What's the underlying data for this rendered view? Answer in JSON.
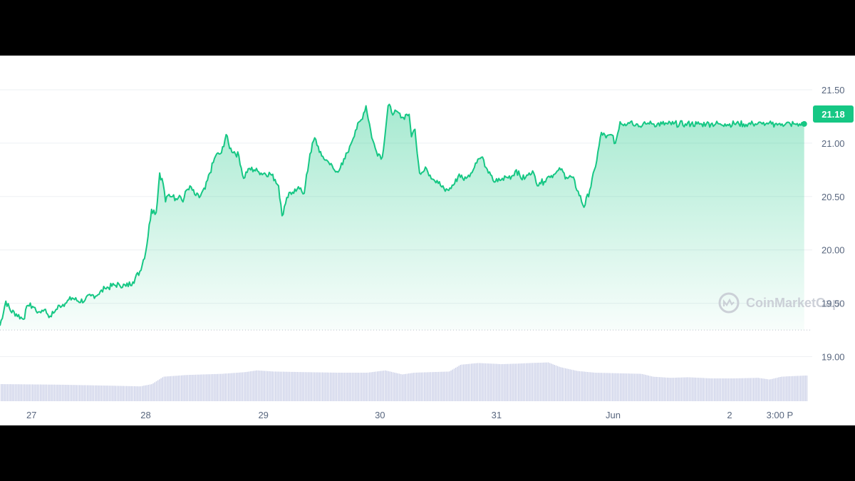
{
  "colors": {
    "line": "#16c784",
    "area_top": "#16c784",
    "volume": "#c8cde6",
    "baseline_dots": "#b9bec9",
    "axis_text": "#58667e",
    "watermark": "#c8ccd4",
    "price_badge_bg": "#16c784",
    "price_badge_text": "#ffffff"
  },
  "watermark": {
    "text": "CoinMarketCap",
    "icon": "coinmarketcap-logo-icon"
  },
  "chart_data": {
    "type": "line",
    "title": "",
    "xlabel": "",
    "ylabel": "",
    "current_price_label": "21.18",
    "current_price": 21.18,
    "ylim": [
      18.85,
      21.62
    ],
    "y_ticks": [
      "21.50",
      "21.00",
      "20.50",
      "20.00",
      "19.50",
      "19.00"
    ],
    "y_tick_values": [
      21.5,
      21.0,
      20.5,
      20.0,
      19.5,
      19.0
    ],
    "x_ticks": [
      "27",
      "28",
      "29",
      "30",
      "31",
      "Jun",
      "2",
      "3:00 P"
    ],
    "x_tick_values": [
      0.27,
      1.25,
      2.26,
      3.26,
      4.26,
      5.26,
      6.26,
      6.69
    ],
    "x_unit_note": "days since May 27 00:00",
    "xlim": [
      0.0,
      6.92
    ],
    "baseline": 19.25,
    "grid": true,
    "legend": "none",
    "series": [
      {
        "x": [
          0.0,
          0.05,
          0.09,
          0.14,
          0.2,
          0.24,
          0.28,
          0.33,
          0.38,
          0.43,
          0.47,
          0.51,
          0.56,
          0.62,
          0.67,
          0.73,
          0.78,
          0.84,
          0.9,
          0.96,
          1.02,
          1.08,
          1.14,
          1.2,
          1.25,
          1.3,
          1.34,
          1.37,
          1.4,
          1.42,
          1.45,
          1.48,
          1.51,
          1.54,
          1.57,
          1.6,
          1.63,
          1.67,
          1.71,
          1.76,
          1.8,
          1.85,
          1.9,
          1.94,
          1.97,
          2.01,
          2.05,
          2.09,
          2.13,
          2.18,
          2.22,
          2.24,
          2.27,
          2.32,
          2.36,
          2.39,
          2.42,
          2.46,
          2.49,
          2.52,
          2.55,
          2.58,
          2.61,
          2.66,
          2.7,
          2.76,
          2.82,
          2.88,
          2.94,
          3.0,
          3.05,
          3.1,
          3.14,
          3.17,
          3.19,
          3.23,
          3.28,
          3.33,
          3.38,
          3.43,
          3.46,
          3.49,
          3.51,
          3.53,
          3.56,
          3.6,
          3.63,
          3.66,
          3.69,
          3.72,
          3.75,
          3.79,
          3.82,
          3.86,
          3.9,
          3.94,
          3.97,
          4.0,
          4.02,
          4.06,
          4.1,
          4.14,
          4.16,
          4.19,
          4.23,
          4.27,
          4.31,
          4.35,
          4.39,
          4.43,
          4.47,
          4.51,
          4.54,
          4.57,
          4.6,
          4.63,
          4.67,
          4.71,
          4.76,
          4.81,
          4.86,
          4.91,
          4.96,
          5.01,
          5.06,
          5.11,
          5.16,
          5.2,
          5.24,
          5.28,
          5.32,
          5.36,
          5.41,
          5.46,
          5.5,
          5.54,
          5.57,
          5.6,
          5.64,
          5.68,
          5.73,
          5.78,
          5.83,
          5.88,
          5.93,
          5.98,
          6.02,
          6.06,
          6.1,
          6.14,
          6.18,
          6.22,
          6.26,
          6.3,
          6.34,
          6.38,
          6.42,
          6.46,
          6.5,
          6.54,
          6.57,
          6.59,
          6.62,
          6.65,
          6.68,
          6.71,
          6.74,
          6.78,
          6.82,
          6.86,
          6.9
        ],
        "values": [
          19.29,
          19.52,
          19.43,
          19.4,
          19.35,
          19.48,
          19.47,
          19.42,
          19.44,
          19.38,
          19.42,
          19.48,
          19.5,
          19.55,
          19.52,
          19.53,
          19.57,
          19.58,
          19.64,
          19.66,
          19.68,
          19.66,
          19.7,
          19.8,
          19.98,
          20.38,
          20.35,
          20.72,
          20.62,
          20.45,
          20.52,
          20.5,
          20.48,
          20.51,
          20.45,
          20.56,
          20.6,
          20.52,
          20.49,
          20.57,
          20.72,
          20.88,
          20.91,
          21.08,
          20.95,
          20.92,
          20.88,
          20.67,
          20.76,
          20.75,
          20.73,
          20.72,
          20.72,
          20.71,
          20.66,
          20.6,
          20.32,
          20.49,
          20.54,
          20.53,
          20.57,
          20.58,
          20.53,
          20.9,
          21.05,
          20.88,
          20.82,
          20.73,
          20.8,
          20.97,
          21.12,
          21.22,
          21.35,
          21.18,
          21.05,
          20.92,
          20.87,
          21.35,
          21.28,
          21.28,
          21.24,
          21.27,
          21.27,
          21.06,
          21.13,
          20.72,
          20.73,
          20.76,
          20.7,
          20.66,
          20.65,
          20.59,
          20.55,
          20.58,
          20.62,
          20.71,
          20.67,
          20.67,
          20.7,
          20.75,
          20.85,
          20.87,
          20.78,
          20.72,
          20.65,
          20.64,
          20.67,
          20.68,
          20.69,
          20.75,
          20.67,
          20.68,
          20.72,
          20.74,
          20.63,
          20.63,
          20.64,
          20.69,
          20.71,
          20.75,
          20.68,
          20.68,
          20.55,
          20.4,
          20.56,
          20.78,
          21.1,
          21.05,
          21.08,
          21.0,
          21.2,
          21.18,
          21.2,
          21.18,
          21.15,
          21.18,
          21.18,
          21.18,
          21.18,
          21.18,
          21.18,
          21.18,
          21.18,
          21.18,
          21.18,
          21.18,
          21.18,
          21.18,
          21.18,
          21.18,
          21.18,
          21.18,
          21.18,
          21.18,
          21.18,
          21.18,
          21.18,
          21.18,
          21.18,
          21.18,
          21.18,
          21.18,
          21.18,
          21.18,
          21.18,
          21.18,
          21.18,
          21.18,
          21.18,
          21.18,
          21.18
        ]
      }
    ],
    "volume": {
      "x": [
        0.0,
        0.5,
        1.0,
        1.2,
        1.3,
        1.4,
        1.6,
        1.9,
        2.1,
        2.2,
        2.35,
        2.6,
        2.9,
        3.15,
        3.3,
        3.45,
        3.55,
        3.7,
        3.85,
        3.95,
        4.1,
        4.3,
        4.45,
        4.55,
        4.7,
        4.8,
        4.95,
        5.1,
        5.3,
        5.5,
        5.6,
        5.75,
        5.9,
        6.1,
        6.3,
        6.5,
        6.6,
        6.7,
        6.9
      ],
      "values": [
        0.3,
        0.29,
        0.27,
        0.26,
        0.3,
        0.43,
        0.46,
        0.48,
        0.51,
        0.54,
        0.52,
        0.51,
        0.5,
        0.5,
        0.54,
        0.47,
        0.5,
        0.51,
        0.52,
        0.64,
        0.67,
        0.65,
        0.66,
        0.67,
        0.68,
        0.6,
        0.53,
        0.5,
        0.49,
        0.48,
        0.43,
        0.41,
        0.42,
        0.4,
        0.4,
        0.41,
        0.38,
        0.43,
        0.45
      ]
    }
  }
}
